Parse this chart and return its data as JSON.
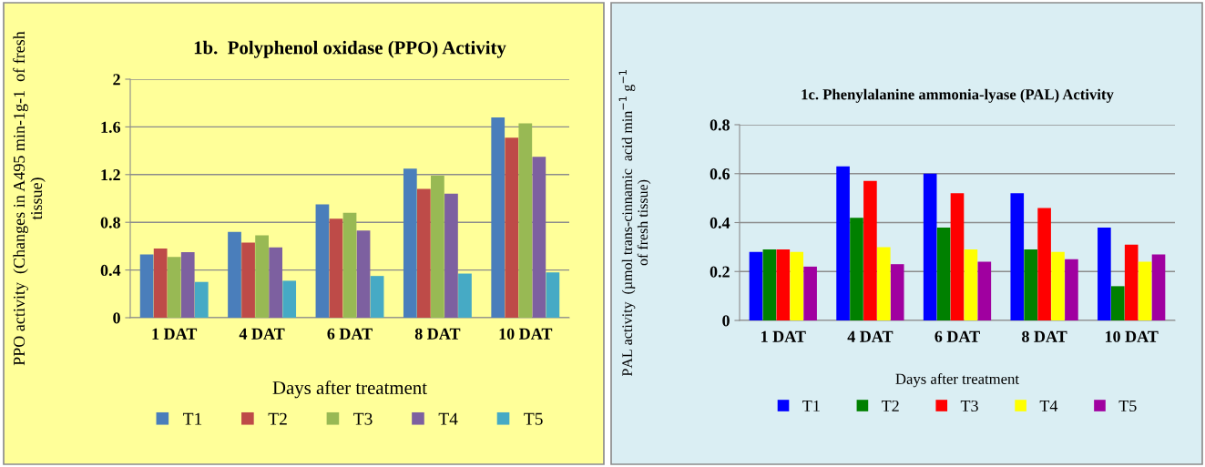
{
  "chart_data": [
    {
      "type": "bar",
      "title": "1b.  Polyphenol oxidase (PPO) Activity",
      "xlabel": "Days after treatment",
      "ylabel": "PPO activity  (Changes in A495 min-1g-1  of fresh\ntissue)",
      "categories": [
        "1 DAT",
        "4 DAT",
        "6 DAT",
        "8 DAT",
        "10 DAT"
      ],
      "series": [
        {
          "name": "T1",
          "color": "#4a7ebb",
          "values": [
            0.53,
            0.72,
            0.95,
            1.25,
            1.68
          ]
        },
        {
          "name": "T2",
          "color": "#be4b48",
          "values": [
            0.58,
            0.63,
            0.83,
            1.08,
            1.51
          ]
        },
        {
          "name": "T3",
          "color": "#98b954",
          "values": [
            0.51,
            0.69,
            0.88,
            1.19,
            1.63
          ]
        },
        {
          "name": "T4",
          "color": "#7d60a0",
          "values": [
            0.55,
            0.59,
            0.73,
            1.04,
            1.35
          ]
        },
        {
          "name": "T5",
          "color": "#46aac5",
          "values": [
            0.3,
            0.31,
            0.35,
            0.37,
            0.38
          ]
        }
      ],
      "ylim": [
        0,
        2
      ],
      "yticks": [
        0,
        0.4,
        0.8,
        1.2,
        1.6,
        2
      ],
      "grid": "y",
      "legend": "bottom"
    },
    {
      "type": "bar",
      "title": "1c. Phenylalanine ammonia-lyase (PAL) Activity",
      "xlabel": "Days after treatment",
      "ylabel": "PAL activity  (µmol trans-cinnamic  acid min$^{−1}$ g$^{−1}$\nof fresh tissue)",
      "categories": [
        "1 DAT",
        "4 DAT",
        "6 DAT",
        "8 DAT",
        "10 DAT"
      ],
      "series": [
        {
          "name": "T1",
          "color": "#0000ff",
          "values": [
            0.28,
            0.63,
            0.6,
            0.52,
            0.38
          ]
        },
        {
          "name": "T2",
          "color": "#008000",
          "values": [
            0.29,
            0.42,
            0.38,
            0.29,
            0.14
          ]
        },
        {
          "name": "T3",
          "color": "#ff0000",
          "values": [
            0.29,
            0.57,
            0.52,
            0.46,
            0.31
          ]
        },
        {
          "name": "T4",
          "color": "#ffff00",
          "values": [
            0.28,
            0.3,
            0.29,
            0.28,
            0.24
          ]
        },
        {
          "name": "T5",
          "color": "#a000a0",
          "values": [
            0.22,
            0.23,
            0.24,
            0.25,
            0.27
          ]
        }
      ],
      "ylim": [
        0,
        0.8
      ],
      "yticks": [
        0,
        0.2,
        0.4,
        0.6,
        0.8
      ],
      "grid": "y",
      "legend": "bottom"
    }
  ]
}
